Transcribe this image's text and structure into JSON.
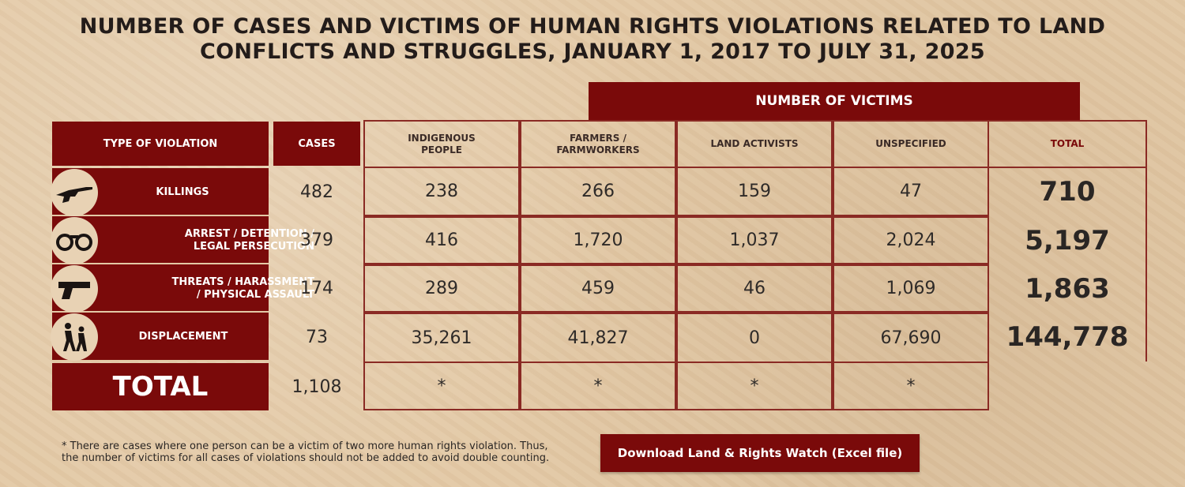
{
  "title_line1": "NUMBER OF CASES AND VICTIMS OF HUMAN RIGHTS VIOLATIONS RELATED TO LAND",
  "title_line2": "CONFLICTS AND STRUGGLES, JANUARY 1, 2017 TO JULY 31, 2025",
  "victims_header": "NUMBER OF VICTIMS",
  "columns": {
    "type": "TYPE OF VIOLATION",
    "cases": "CASES",
    "indigenous_l1": "INDIGENOUS",
    "indigenous_l2": "PEOPLE",
    "farmers_l1": "FARMERS /",
    "farmers_l2": "FARMWORKERS",
    "land_activists": "LAND ACTIVISTS",
    "unspecified": "UNSPECIFIED",
    "total": "TOTAL"
  },
  "rows": [
    {
      "label_l1": "KILLINGS",
      "label_l2": "",
      "icon": "rifle-icon",
      "cases": "482",
      "indigenous": "238",
      "farmers": "266",
      "activists": "159",
      "unspecified": "47",
      "total": "710"
    },
    {
      "label_l1": "ARREST / DETENTION /",
      "label_l2": "LEGAL PERSECUTION",
      "icon": "handcuffs-icon",
      "cases": "379",
      "indigenous": "416",
      "farmers": "1,720",
      "activists": "1,037",
      "unspecified": "2,024",
      "total": "5,197"
    },
    {
      "label_l1": "THREATS / HARASSMENT",
      "label_l2": "/ PHYSICAL ASSAULT",
      "icon": "pistol-icon",
      "cases": "174",
      "indigenous": "289",
      "farmers": "459",
      "activists": "46",
      "unspecified": "1,069",
      "total": "1,863"
    },
    {
      "label_l1": "DISPLACEMENT",
      "label_l2": "",
      "icon": "fleeing-people-icon",
      "cases": "73",
      "indigenous": "35,261",
      "farmers": "41,827",
      "activists": "0",
      "unspecified": "67,690",
      "total": "144,778"
    }
  ],
  "total_row": {
    "label": "TOTAL",
    "cases": "1,108",
    "indigenous": "*",
    "farmers": "*",
    "activists": "*",
    "unspecified": "*"
  },
  "note": "* There are cases where one person can be a victim of two more human rights violation. Thus, the number of victims for all cases of violations should not be added to avoid double counting.",
  "download_label": "Download Land & Rights Watch (Excel file)",
  "colors": {
    "maroon": "#7a0a0a",
    "background": "#e3c9a6",
    "border": "#8a2a24"
  },
  "chart_data": {
    "type": "table",
    "title": "NUMBER OF CASES AND VICTIMS OF HUMAN RIGHTS VIOLATIONS RELATED TO LAND CONFLICTS AND STRUGGLES, JANUARY 1, 2017 TO JULY 31, 2025",
    "columns": [
      "TYPE OF VIOLATION",
      "CASES",
      "INDIGENOUS PEOPLE",
      "FARMERS / FARMWORKERS",
      "LAND ACTIVISTS",
      "UNSPECIFIED",
      "TOTAL"
    ],
    "rows": [
      [
        "KILLINGS",
        482,
        238,
        266,
        159,
        47,
        710
      ],
      [
        "ARREST / DETENTION / LEGAL PERSECUTION",
        379,
        416,
        1720,
        1037,
        2024,
        5197
      ],
      [
        "THREATS / HARASSMENT / PHYSICAL ASSAULT",
        174,
        289,
        459,
        46,
        1069,
        1863
      ],
      [
        "DISPLACEMENT",
        73,
        35261,
        41827,
        0,
        67690,
        144778
      ],
      [
        "TOTAL",
        1108,
        "*",
        "*",
        "*",
        "*",
        ""
      ]
    ]
  }
}
